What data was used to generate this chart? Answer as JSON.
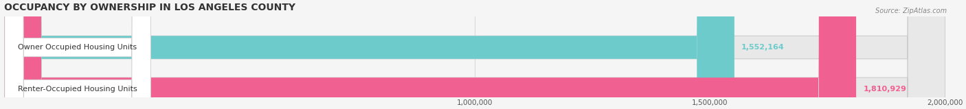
{
  "title": "OCCUPANCY BY OWNERSHIP IN LOS ANGELES COUNTY",
  "source": "Source: ZipAtlas.com",
  "categories": [
    "Owner Occupied Housing Units",
    "Renter-Occupied Housing Units"
  ],
  "values": [
    1552164,
    1810929
  ],
  "bar_colors": [
    "#6dcbcb",
    "#f06090"
  ],
  "label_colors": [
    "#6dcbcb",
    "#f06090"
  ],
  "bar_height": 0.55,
  "xlim": [
    0,
    2000000
  ],
  "xticks": [
    1000000,
    1500000,
    2000000
  ],
  "xtick_labels": [
    "1,000,000",
    "1,500,000",
    "2,000,000"
  ],
  "value_labels": [
    "1,552,164",
    "1,810,929"
  ],
  "background_color": "#f5f5f5",
  "bar_bg_color": "#e8e8e8",
  "title_fontsize": 10,
  "label_fontsize": 8,
  "value_fontsize": 8,
  "axis_fontsize": 7.5,
  "source_fontsize": 7
}
